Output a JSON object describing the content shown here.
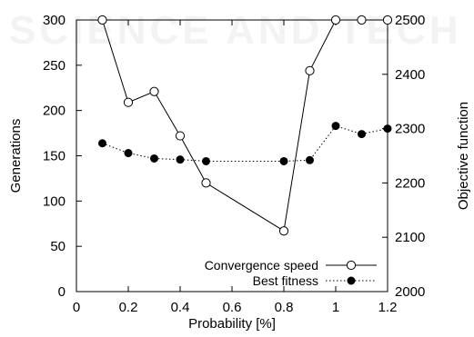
{
  "chart_data": {
    "type": "line",
    "xlabel": "Probability [%]",
    "ylabel_left": "Generations",
    "ylabel_right": "Objective function",
    "xlim": [
      0,
      1.2
    ],
    "ylim_left": [
      0,
      300
    ],
    "ylim_right": [
      2000,
      2500
    ],
    "x_ticks": [
      "0",
      "0.2",
      "0.4",
      "0.6",
      "0.8",
      "1",
      "1.2"
    ],
    "y_left_ticks": [
      "0",
      "50",
      "100",
      "150",
      "200",
      "250",
      "300"
    ],
    "y_right_ticks": [
      "2000",
      "2100",
      "2200",
      "2300",
      "2400",
      "2500"
    ],
    "grid": false,
    "legend_position": "bottom-right",
    "series": [
      {
        "name": "Convergence speed",
        "axis": "left",
        "line_style": "solid",
        "marker": "open-circle",
        "x": [
          0.1,
          0.2,
          0.3,
          0.4,
          0.5,
          0.8,
          0.9,
          1.0,
          1.1,
          1.2
        ],
        "y": [
          300,
          209,
          221,
          172,
          120,
          67,
          244,
          300,
          300,
          300
        ]
      },
      {
        "name": "Best fitness",
        "axis": "right",
        "line_style": "dotted",
        "marker": "filled-circle",
        "x": [
          0.1,
          0.2,
          0.3,
          0.4,
          0.5,
          0.8,
          0.9,
          1.0,
          1.1,
          1.2
        ],
        "y": [
          2273,
          2255,
          2245,
          2243,
          2240,
          2240,
          2242,
          2305,
          2290,
          2300
        ]
      }
    ]
  },
  "watermark": {
    "text": "SCIENCE AND TECH"
  }
}
